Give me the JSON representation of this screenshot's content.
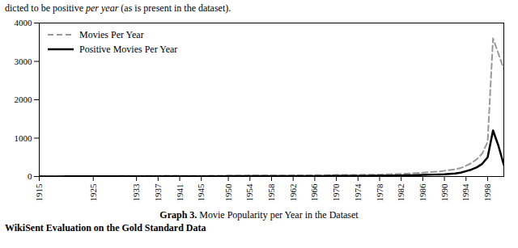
{
  "chart_data": {
    "type": "line",
    "annotations": [
      [
        "dicted to be positive ",
        "per year",
        " (as is present in the dataset)."
      ],
      [
        "Graph 3.",
        " Movie Popularity per Year in the Dataset"
      ],
      [
        "WikiSent Evaluation on the Gold Standard Data"
      ]
    ],
    "x": [
      1915,
      1916,
      1917,
      1918,
      1919,
      1920,
      1921,
      1922,
      1923,
      1924,
      1925,
      1926,
      1927,
      1928,
      1929,
      1930,
      1931,
      1932,
      1933,
      1934,
      1935,
      1936,
      1937,
      1938,
      1939,
      1940,
      1941,
      1942,
      1943,
      1944,
      1945,
      1946,
      1947,
      1948,
      1949,
      1950,
      1951,
      1952,
      1953,
      1954,
      1955,
      1956,
      1957,
      1958,
      1959,
      1960,
      1961,
      1962,
      1963,
      1964,
      1965,
      1966,
      1967,
      1968,
      1969,
      1970,
      1971,
      1972,
      1973,
      1974,
      1975,
      1976,
      1977,
      1978,
      1979,
      1980,
      1981,
      1982,
      1983,
      1984,
      1985,
      1986,
      1987,
      1988,
      1989,
      1990,
      1991,
      1992,
      1993,
      1994,
      1995,
      1996,
      1997,
      1998,
      1999,
      2000,
      2001
    ],
    "series": [
      {
        "name": "Movies Per Year",
        "color": "#999999",
        "line_style": "dashed",
        "values": [
          5,
          5,
          5,
          5,
          5,
          8,
          8,
          8,
          8,
          8,
          10,
          10,
          12,
          12,
          12,
          15,
          15,
          12,
          12,
          15,
          18,
          18,
          18,
          20,
          20,
          20,
          18,
          18,
          15,
          15,
          15,
          18,
          20,
          20,
          20,
          22,
          22,
          22,
          22,
          25,
          25,
          25,
          25,
          25,
          28,
          28,
          28,
          30,
          30,
          30,
          30,
          35,
          35,
          35,
          38,
          40,
          40,
          42,
          42,
          42,
          45,
          45,
          50,
          50,
          55,
          60,
          65,
          70,
          75,
          80,
          90,
          100,
          110,
          120,
          130,
          150,
          170,
          190,
          220,
          280,
          350,
          450,
          600,
          900,
          3600,
          3200,
          2800
        ]
      },
      {
        "name": "Positive Movies Per Year",
        "color": "#000000",
        "line_style": "solid",
        "values": [
          2,
          2,
          2,
          2,
          2,
          3,
          3,
          3,
          3,
          3,
          4,
          4,
          4,
          4,
          4,
          5,
          5,
          4,
          4,
          5,
          6,
          6,
          6,
          7,
          7,
          7,
          6,
          6,
          5,
          5,
          5,
          6,
          7,
          7,
          7,
          8,
          8,
          8,
          8,
          9,
          9,
          9,
          9,
          9,
          10,
          10,
          10,
          11,
          11,
          11,
          11,
          13,
          13,
          13,
          14,
          15,
          15,
          16,
          16,
          16,
          17,
          17,
          19,
          19,
          21,
          23,
          25,
          27,
          29,
          31,
          35,
          40,
          45,
          50,
          55,
          60,
          70,
          80,
          100,
          140,
          180,
          240,
          330,
          500,
          1200,
          800,
          300
        ]
      }
    ],
    "xlim": [
      1915,
      2001
    ],
    "xticks": [
      1915,
      1925,
      1933,
      1937,
      1941,
      1945,
      1950,
      1954,
      1958,
      1962,
      1966,
      1970,
      1974,
      1978,
      1982,
      1986,
      1990,
      1994,
      1998
    ],
    "ylim": [
      0,
      4000
    ],
    "yticks": [
      0,
      1000,
      2000,
      3000,
      4000
    ],
    "grid": false,
    "legend": "upper left"
  }
}
